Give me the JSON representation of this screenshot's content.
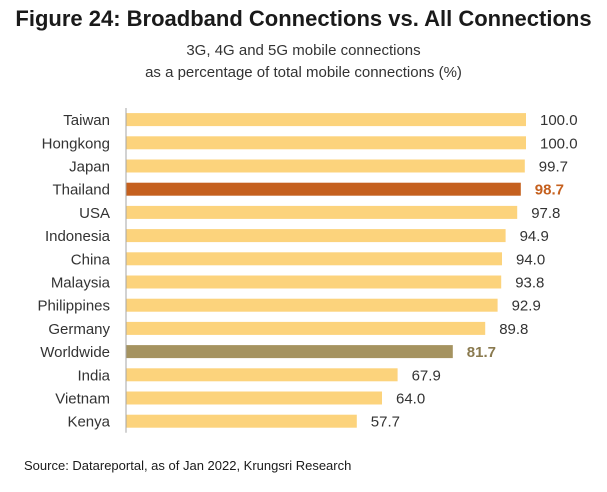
{
  "chart_data": {
    "type": "bar",
    "orientation": "horizontal",
    "title": "Figure 24: Broadband Connections vs. All Connections",
    "subtitle_lines": [
      "3G, 4G and 5G mobile connections",
      "as a percentage of total mobile connections (%)"
    ],
    "categories": [
      "Taiwan",
      "Hongkong",
      "Japan",
      "Thailand",
      "USA",
      "Indonesia",
      "China",
      "Malaysia",
      "Philippines",
      "Germany",
      "Worldwide",
      "India",
      "Vietnam",
      "Kenya"
    ],
    "values": [
      100.0,
      100.0,
      99.7,
      98.7,
      97.8,
      94.9,
      94.0,
      93.8,
      92.9,
      89.8,
      81.7,
      67.9,
      64.0,
      57.7
    ],
    "value_labels": [
      "100.0",
      "100.0",
      "99.7",
      "98.7",
      "97.8",
      "94.9",
      "94.0",
      "93.8",
      "92.9",
      "89.8",
      "81.7",
      "67.9",
      "64.0",
      "57.7"
    ],
    "highlights": {
      "Thailand": {
        "bar_color": "#c5601e",
        "label_color": "#c5601e",
        "bold": true
      },
      "Worldwide": {
        "bar_color": "#a59360",
        "label_color": "#8a7a4f",
        "bold": true
      }
    },
    "default_bar_color": "#fcd37c",
    "default_label_color": "#333333",
    "xlim": [
      0,
      100
    ],
    "grid": false,
    "legend": "none",
    "source": "Source: Datareportal, as of Jan 2022, Krungsri Research"
  }
}
